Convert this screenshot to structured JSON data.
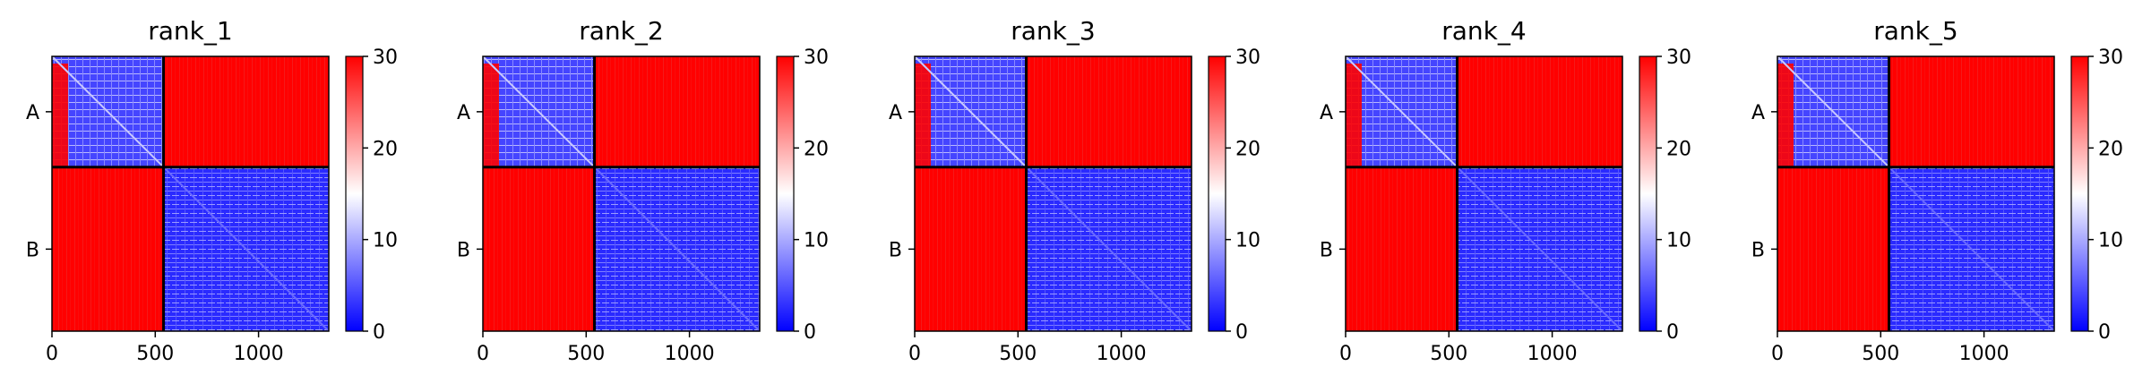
{
  "chart_data": [
    {
      "type": "heatmap",
      "title": "rank_1",
      "x_ticks": [
        0,
        500,
        1000
      ],
      "xlim": [
        0,
        1340
      ],
      "y_tick_labels": [
        "A",
        "B"
      ],
      "chain_boundary": 540,
      "colorbar": {
        "ticks": [
          0,
          10,
          20,
          30
        ],
        "range": [
          0,
          30
        ],
        "colors": [
          "#0000ff",
          "#ffffff",
          "#ff0000"
        ]
      }
    },
    {
      "type": "heatmap",
      "title": "rank_2",
      "x_ticks": [
        0,
        500,
        1000
      ],
      "xlim": [
        0,
        1340
      ],
      "y_tick_labels": [
        "A",
        "B"
      ],
      "chain_boundary": 540,
      "colorbar": {
        "ticks": [
          0,
          10,
          20,
          30
        ],
        "range": [
          0,
          30
        ],
        "colors": [
          "#0000ff",
          "#ffffff",
          "#ff0000"
        ]
      }
    },
    {
      "type": "heatmap",
      "title": "rank_3",
      "x_ticks": [
        0,
        500,
        1000
      ],
      "xlim": [
        0,
        1340
      ],
      "y_tick_labels": [
        "A",
        "B"
      ],
      "chain_boundary": 540,
      "colorbar": {
        "ticks": [
          0,
          10,
          20,
          30
        ],
        "range": [
          0,
          30
        ],
        "colors": [
          "#0000ff",
          "#ffffff",
          "#ff0000"
        ]
      }
    },
    {
      "type": "heatmap",
      "title": "rank_4",
      "x_ticks": [
        0,
        500,
        1000
      ],
      "xlim": [
        0,
        1340
      ],
      "y_tick_labels": [
        "A",
        "B"
      ],
      "chain_boundary": 540,
      "colorbar": {
        "ticks": [
          0,
          10,
          20,
          30
        ],
        "range": [
          0,
          30
        ],
        "colors": [
          "#0000ff",
          "#ffffff",
          "#ff0000"
        ]
      }
    },
    {
      "type": "heatmap",
      "title": "rank_5",
      "x_ticks": [
        0,
        500,
        1000
      ],
      "xlim": [
        0,
        1340
      ],
      "y_tick_labels": [
        "A",
        "B"
      ],
      "chain_boundary": 540,
      "colorbar": {
        "ticks": [
          0,
          10,
          20,
          30
        ],
        "range": [
          0,
          30
        ],
        "colors": [
          "#0000ff",
          "#ffffff",
          "#ff0000"
        ]
      }
    }
  ]
}
